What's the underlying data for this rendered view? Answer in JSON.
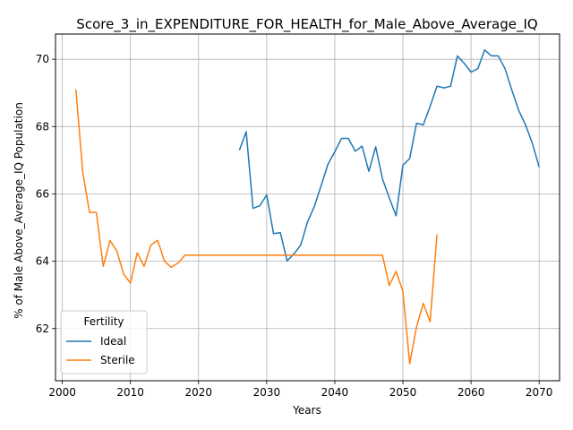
{
  "chart_data": {
    "type": "line",
    "title": "Score_3_in_EXPENDITURE_FOR_HEALTH_for_Male_Above_Average_IQ",
    "xlabel": "Years",
    "ylabel": "% of Male Above_Average_IQ Population",
    "xlim": [
      1999,
      2073
    ],
    "ylim": [
      60.45,
      70.75
    ],
    "xticks": [
      2000,
      2010,
      2020,
      2030,
      2040,
      2050,
      2060,
      2070
    ],
    "yticks": [
      62,
      64,
      66,
      68,
      70
    ],
    "grid": true,
    "legend": {
      "title": "Fertility",
      "placement": "lower-left"
    },
    "series": [
      {
        "name": "Ideal",
        "color": "#1f77b4",
        "x": [
          2026,
          2027,
          2028,
          2029,
          2030,
          2031,
          2032,
          2033,
          2034,
          2035,
          2036,
          2037,
          2038,
          2039,
          2040,
          2041,
          2042,
          2043,
          2044,
          2045,
          2046,
          2047,
          2048,
          2049,
          2050,
          2051,
          2052,
          2053,
          2054,
          2055,
          2056,
          2057,
          2058,
          2059,
          2060,
          2061,
          2062,
          2063,
          2064,
          2065,
          2066,
          2067,
          2068,
          2069,
          2070
        ],
        "y": [
          67.3,
          67.85,
          65.57,
          65.65,
          65.97,
          64.82,
          64.85,
          64.01,
          64.22,
          64.48,
          65.17,
          65.63,
          66.25,
          66.88,
          67.25,
          67.65,
          67.65,
          67.27,
          67.42,
          66.67,
          67.4,
          66.45,
          65.88,
          65.35,
          66.85,
          67.05,
          68.1,
          68.05,
          68.6,
          69.2,
          69.15,
          69.2,
          70.1,
          69.88,
          69.62,
          69.72,
          70.28,
          70.1,
          70.1,
          69.72,
          69.08,
          68.48,
          68.05,
          67.5,
          66.8
        ]
      },
      {
        "name": "Sterile",
        "color": "#ff7f0e",
        "x": [
          2002,
          2003,
          2004,
          2005,
          2006,
          2007,
          2008,
          2009,
          2010,
          2011,
          2012,
          2013,
          2014,
          2015,
          2016,
          2017,
          2018,
          2019,
          2020,
          2021,
          2022,
          2023,
          2024,
          2025,
          2026,
          2027,
          2028,
          2029,
          2030,
          2031,
          2032,
          2033,
          2034,
          2035,
          2036,
          2037,
          2038,
          2039,
          2040,
          2041,
          2042,
          2043,
          2044,
          2045,
          2046,
          2047,
          2048,
          2049,
          2050,
          2051,
          2052,
          2053,
          2054,
          2055
        ],
        "y": [
          69.1,
          66.65,
          65.45,
          65.45,
          63.85,
          64.62,
          64.3,
          63.62,
          63.35,
          64.25,
          63.85,
          64.48,
          64.62,
          64.0,
          63.82,
          63.95,
          64.18,
          64.18,
          64.18,
          64.18,
          64.18,
          64.18,
          64.18,
          64.18,
          64.18,
          64.18,
          64.18,
          64.18,
          64.18,
          64.18,
          64.18,
          64.18,
          64.18,
          64.18,
          64.18,
          64.18,
          64.18,
          64.18,
          64.18,
          64.18,
          64.18,
          64.18,
          64.18,
          64.18,
          64.18,
          64.18,
          63.28,
          63.7,
          63.1,
          60.95,
          62.05,
          62.75,
          62.2,
          64.8
        ]
      }
    ]
  }
}
